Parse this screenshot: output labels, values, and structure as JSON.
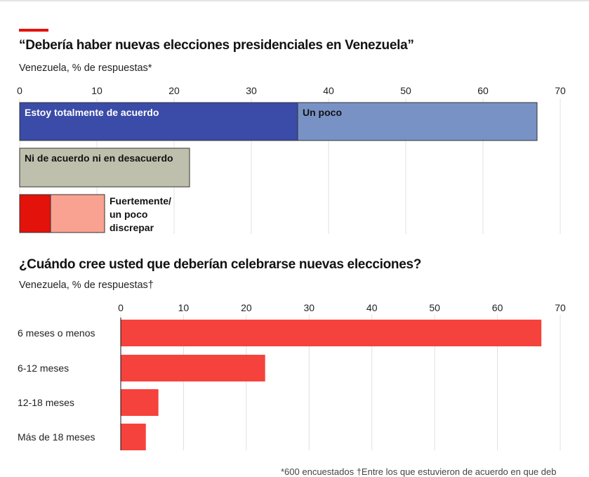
{
  "chart_data": [
    {
      "type": "bar",
      "title": "“Debería haber nuevas elecciones presidenciales en Venezuela”",
      "subtitle": "Venezuela, % de respuestas*",
      "xlim": [
        0,
        70
      ],
      "ticks": [
        0,
        10,
        20,
        30,
        40,
        50,
        60,
        70
      ],
      "grid": true,
      "stacked": true,
      "rows": [
        {
          "segments": [
            {
              "label": "Estoy totalmente de acuerdo",
              "value": 36,
              "color": "#3a4ba8",
              "text_color": "#ffffff"
            },
            {
              "label": "Un poco",
              "value": 31,
              "color": "#7892c6",
              "text_color": "#121212"
            }
          ]
        },
        {
          "segments": [
            {
              "label": "Ni de acuerdo ni en desacuerdo",
              "value": 22,
              "color": "#bfbfae",
              "text_color": "#121212"
            }
          ]
        },
        {
          "label": "Fuertemente/\nun poco\ndiscrepar",
          "segments": [
            {
              "value": 4,
              "color": "#e3120b"
            },
            {
              "value": 7,
              "color": "#f9a291"
            }
          ]
        }
      ]
    },
    {
      "type": "bar",
      "title": "¿Cuándo cree usted que deberían celebrarse nuevas elecciones?",
      "subtitle": "Venezuela, % de respuestas†",
      "xlim": [
        0,
        70
      ],
      "ticks": [
        0,
        10,
        20,
        30,
        40,
        50,
        60,
        70
      ],
      "grid": true,
      "categories": [
        "6 meses o menos",
        "6-12 meses",
        "12-18 meses",
        "Más de 18 meses"
      ],
      "values": [
        67,
        23,
        6,
        4
      ],
      "color": "#f6423c"
    }
  ],
  "footnote": "*600 encuestados †Entre los que estuvieron de acuerdo en que deb"
}
